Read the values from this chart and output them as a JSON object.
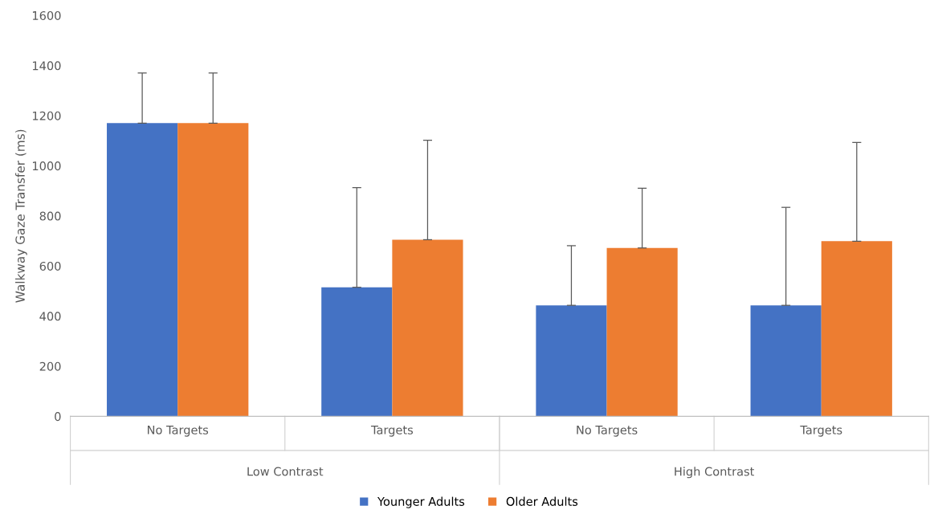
{
  "chart_data": {
    "type": "bar",
    "ylabel": "Walkway Gaze Transfer (ms)",
    "categories": [
      "No Targets",
      "Targets",
      "No Targets",
      "Targets"
    ],
    "series": [
      {
        "name": "Younger Adults",
        "color": "#4472c4",
        "values": [
          1170,
          515,
          443,
          443
        ],
        "errors": [
          [
            1170,
            1370
          ],
          [
            515,
            913
          ],
          [
            443,
            681
          ],
          [
            443,
            834
          ]
        ]
      },
      {
        "name": "Older Adults",
        "color": "#ed7d31",
        "values": [
          1170,
          705,
          672,
          699
        ],
        "errors": [
          [
            1170,
            1370
          ],
          [
            705,
            1102
          ],
          [
            672,
            910
          ],
          [
            699,
            1093
          ]
        ]
      }
    ],
    "annotations": [
      "Low Contrast",
      "High Contrast"
    ],
    "ylim": [
      0,
      1600
    ],
    "yticks": [
      0,
      200,
      400,
      600,
      800,
      1000,
      1200,
      1400,
      1600
    ],
    "grid": false,
    "legend": "bottom"
  }
}
